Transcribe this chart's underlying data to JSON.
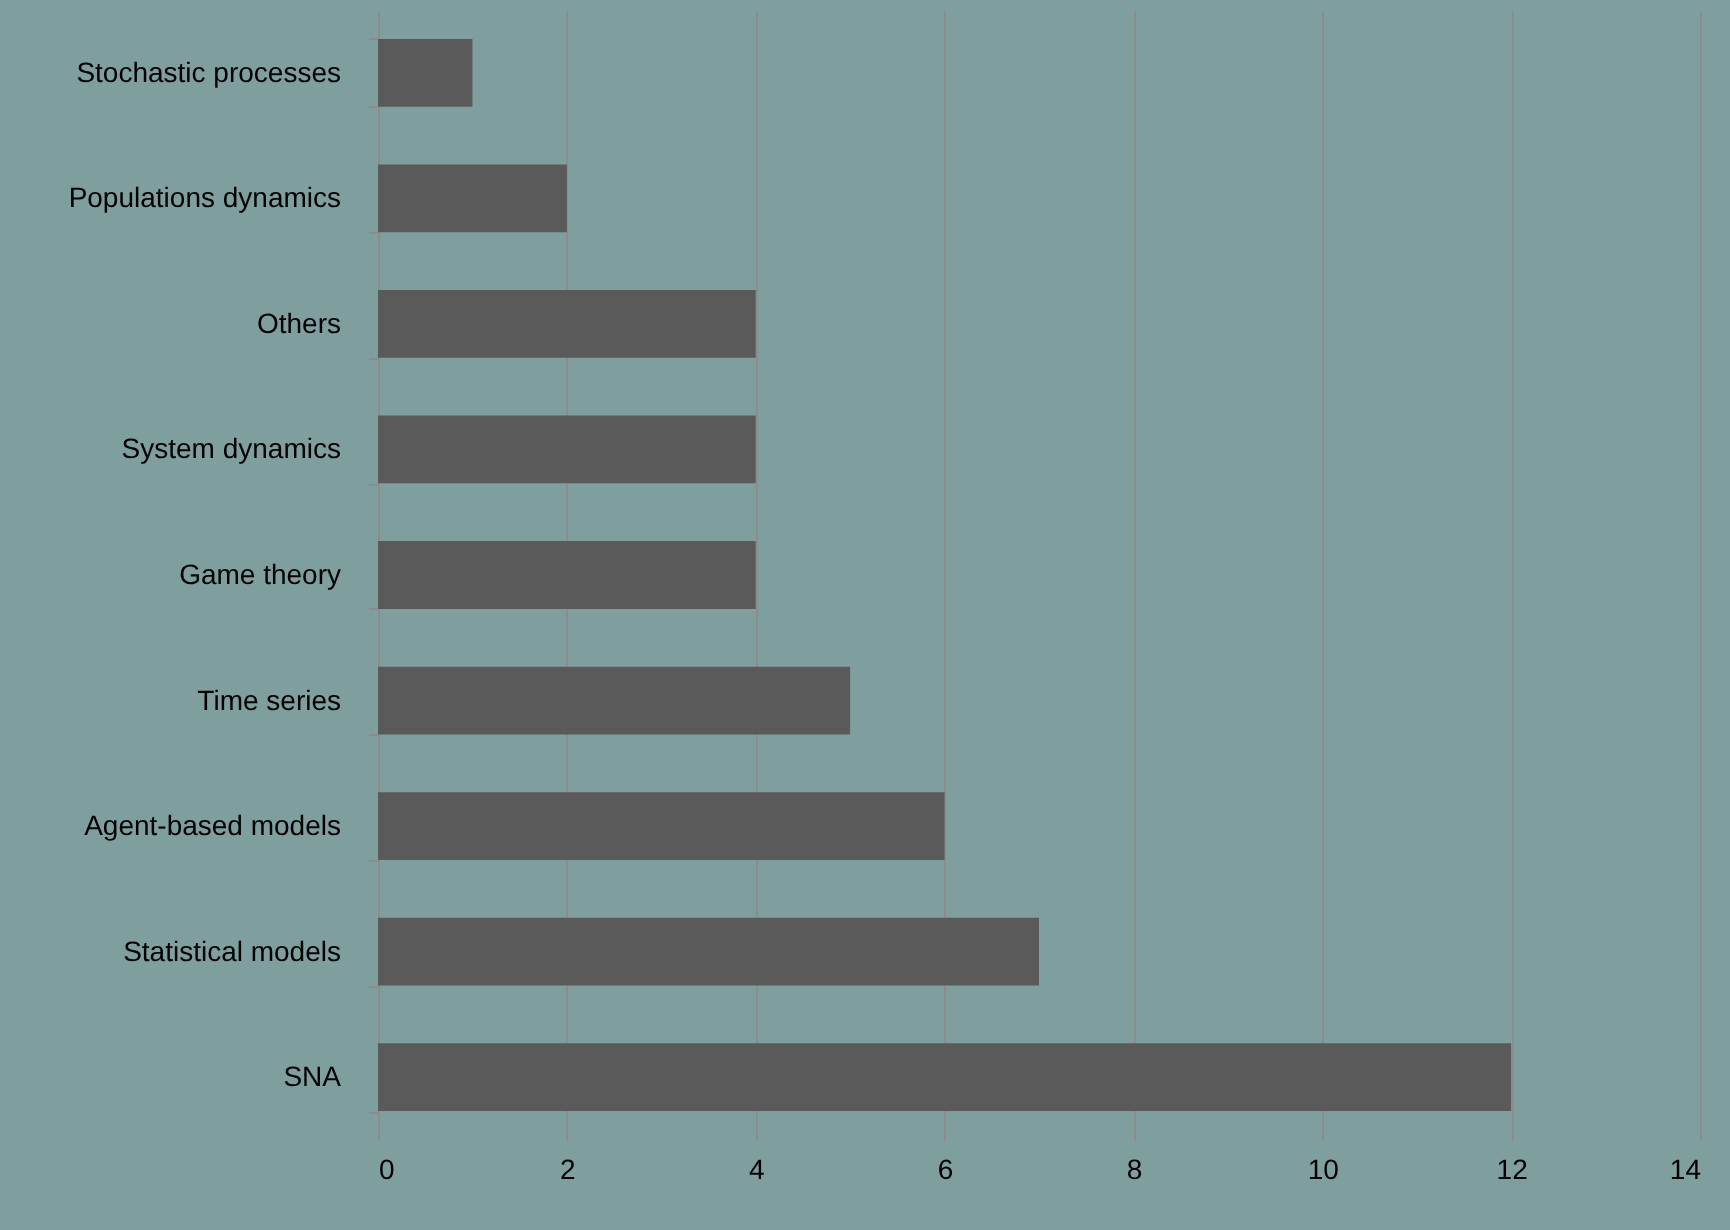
{
  "chart_data": {
    "type": "bar",
    "orientation": "horizontal",
    "categories": [
      "Stochastic processes",
      "Populations dynamics",
      "Others",
      "System dynamics",
      "Game theory",
      "Time series",
      "Agent-based models",
      "Statistical models",
      "SNA"
    ],
    "values": [
      1,
      2,
      4,
      4,
      4,
      5,
      6,
      7,
      12
    ],
    "color": "#5a5a5a",
    "xlim": [
      0,
      14
    ],
    "xticks": [
      0,
      2,
      4,
      6,
      8,
      10,
      12,
      14
    ],
    "grid": "x"
  }
}
